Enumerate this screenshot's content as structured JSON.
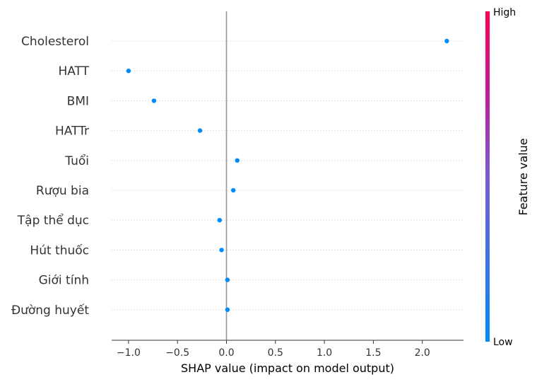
{
  "chart_data": {
    "type": "scatter",
    "xlabel": "SHAP value (impact on model output)",
    "xlim": [
      -1.17,
      2.42
    ],
    "xticks": [
      -1.0,
      -0.5,
      0.0,
      0.5,
      1.0,
      1.5,
      2.0
    ],
    "xtick_labels": [
      "−1.0",
      "−0.5",
      "0.0",
      "0.5",
      "1.0",
      "1.5",
      "2.0"
    ],
    "grid": "dotted horizontal row lines",
    "features": [
      {
        "name": "Cholesterol",
        "shap": 2.25
      },
      {
        "name": "HATT",
        "shap": -1.0
      },
      {
        "name": "BMI",
        "shap": -0.74
      },
      {
        "name": "HATTr",
        "shap": -0.27
      },
      {
        "name": "Tuổi",
        "shap": 0.11
      },
      {
        "name": "Rượu bia",
        "shap": 0.07
      },
      {
        "name": "Tập thể dục",
        "shap": -0.07
      },
      {
        "name": "Hút thuốc",
        "shap": -0.05
      },
      {
        "name": "Giới tính",
        "shap": 0.01
      },
      {
        "name": "Đường huyết",
        "shap": 0.01
      }
    ],
    "point_color": "#008bfb",
    "colorbar": {
      "title": "Feature value",
      "high_label": "High",
      "low_label": "Low",
      "high_color": "#ff0052",
      "low_color": "#008bfb"
    }
  }
}
